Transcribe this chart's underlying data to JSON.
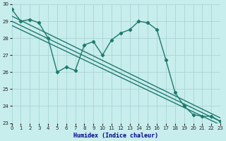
{
  "xlabel": "Humidex (Indice chaleur)",
  "bg_color": "#c8eded",
  "line_color": "#1e7a6e",
  "grid_color": "#aad4d4",
  "xmin": 0,
  "xmax": 23,
  "ymin": 23,
  "ymax": 30,
  "yticks": [
    23,
    24,
    25,
    26,
    27,
    28,
    29,
    30
  ],
  "xticks": [
    0,
    1,
    2,
    3,
    4,
    5,
    6,
    7,
    8,
    9,
    10,
    11,
    12,
    13,
    14,
    15,
    16,
    17,
    18,
    19,
    20,
    21,
    22,
    23
  ],
  "curve_x": [
    0,
    1,
    2,
    3,
    4,
    5,
    6,
    7,
    8,
    9,
    10,
    11,
    12,
    13,
    14,
    15,
    16,
    17,
    18,
    19,
    20,
    21,
    22,
    23
  ],
  "curve_y": [
    29.7,
    29.0,
    29.1,
    28.9,
    28.0,
    26.0,
    26.3,
    26.1,
    27.6,
    27.8,
    27.0,
    27.9,
    28.3,
    28.5,
    29.0,
    28.9,
    28.5,
    26.7,
    24.8,
    24.0,
    23.5,
    23.4,
    23.4,
    23.1
  ],
  "linear_lines": [
    {
      "x0": 0,
      "y0": 29.3,
      "x1": 23,
      "y1": 23.3
    },
    {
      "x0": 0,
      "y0": 29.0,
      "x1": 23,
      "y1": 23.1
    },
    {
      "x0": 0,
      "y0": 28.75,
      "x1": 23,
      "y1": 22.9
    }
  ],
  "xlabel_color": "#00008b",
  "xlabel_fontsize": 6,
  "tick_fontsize": 5,
  "line_width": 1.0,
  "marker_size": 2.2
}
